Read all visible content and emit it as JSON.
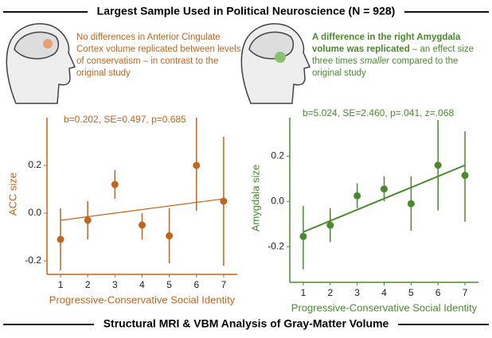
{
  "title": "Largest Sample Used in Political Neuroscience (N = 928)",
  "footer": "Structural MRI & VBM Analysis of Gray-Matter Volume",
  "chart_data": [
    {
      "type": "scatter",
      "color": "#c0651b",
      "description": [
        {
          "text": "No differences in Anterior Cingulate Cortex volume replicated between levels of conservatism – in contrast to the original study"
        }
      ],
      "annotation": "b=0.202, SE=0.497, p=0.685",
      "xlabel": "Progressive-Conservative Social Identity",
      "ylabel": "ACC size",
      "x": [
        1,
        2,
        3,
        4,
        5,
        6,
        7
      ],
      "values": [
        -0.11,
        -0.03,
        0.12,
        -0.05,
        -0.095,
        0.2,
        0.05
      ],
      "lower": [
        -0.24,
        -0.11,
        0.06,
        -0.11,
        -0.21,
        0.01,
        -0.22
      ],
      "upper": [
        0.02,
        0.05,
        0.18,
        0.0,
        0.02,
        0.4,
        0.32
      ],
      "fit": {
        "x": [
          1,
          7
        ],
        "values": [
          -0.03,
          0.06
        ]
      },
      "xlim": [
        0.5,
        7.5
      ],
      "xticks": [
        1,
        2,
        3,
        4,
        5,
        6,
        7
      ],
      "ylim": [
        -0.24,
        0.4
      ],
      "yticks": [
        -0.2,
        {
          "value": 0,
          "label": "0.0"
        },
        0.2
      ]
    },
    {
      "type": "scatter",
      "color": "#4a8a2c",
      "description": [
        {
          "text": "A difference in the right Amygdala volume was replicated",
          "style": "bold"
        },
        {
          "text": " – an effect size three times "
        },
        {
          "text": "smaller",
          "style": "italic"
        },
        {
          "text": " compared to the original study"
        }
      ],
      "annotation": "b=5.024, SE=2.460, p=.041, z=.068",
      "xlabel": "Progressive-Conservative Social Identity",
      "ylabel": "Amygdala size",
      "x": [
        1,
        2,
        3,
        4,
        5,
        6,
        7
      ],
      "values": [
        -0.155,
        -0.105,
        0.025,
        0.055,
        -0.01,
        0.16,
        0.115
      ],
      "lower": [
        -0.3,
        -0.18,
        -0.03,
        0.0,
        -0.13,
        -0.04,
        -0.09
      ],
      "upper": [
        -0.02,
        -0.03,
        0.08,
        0.11,
        0.11,
        0.36,
        0.31
      ],
      "fit": {
        "x": [
          1,
          7
        ],
        "values": [
          -0.135,
          0.16
        ]
      },
      "xlim": [
        0.5,
        7.5
      ],
      "xticks": [
        1,
        2,
        3,
        4,
        5,
        6,
        7
      ],
      "ylim": [
        -0.34,
        0.37
      ],
      "yticks": [
        -0.2,
        {
          "value": 0,
          "label": "0.0"
        },
        0.2
      ]
    }
  ]
}
